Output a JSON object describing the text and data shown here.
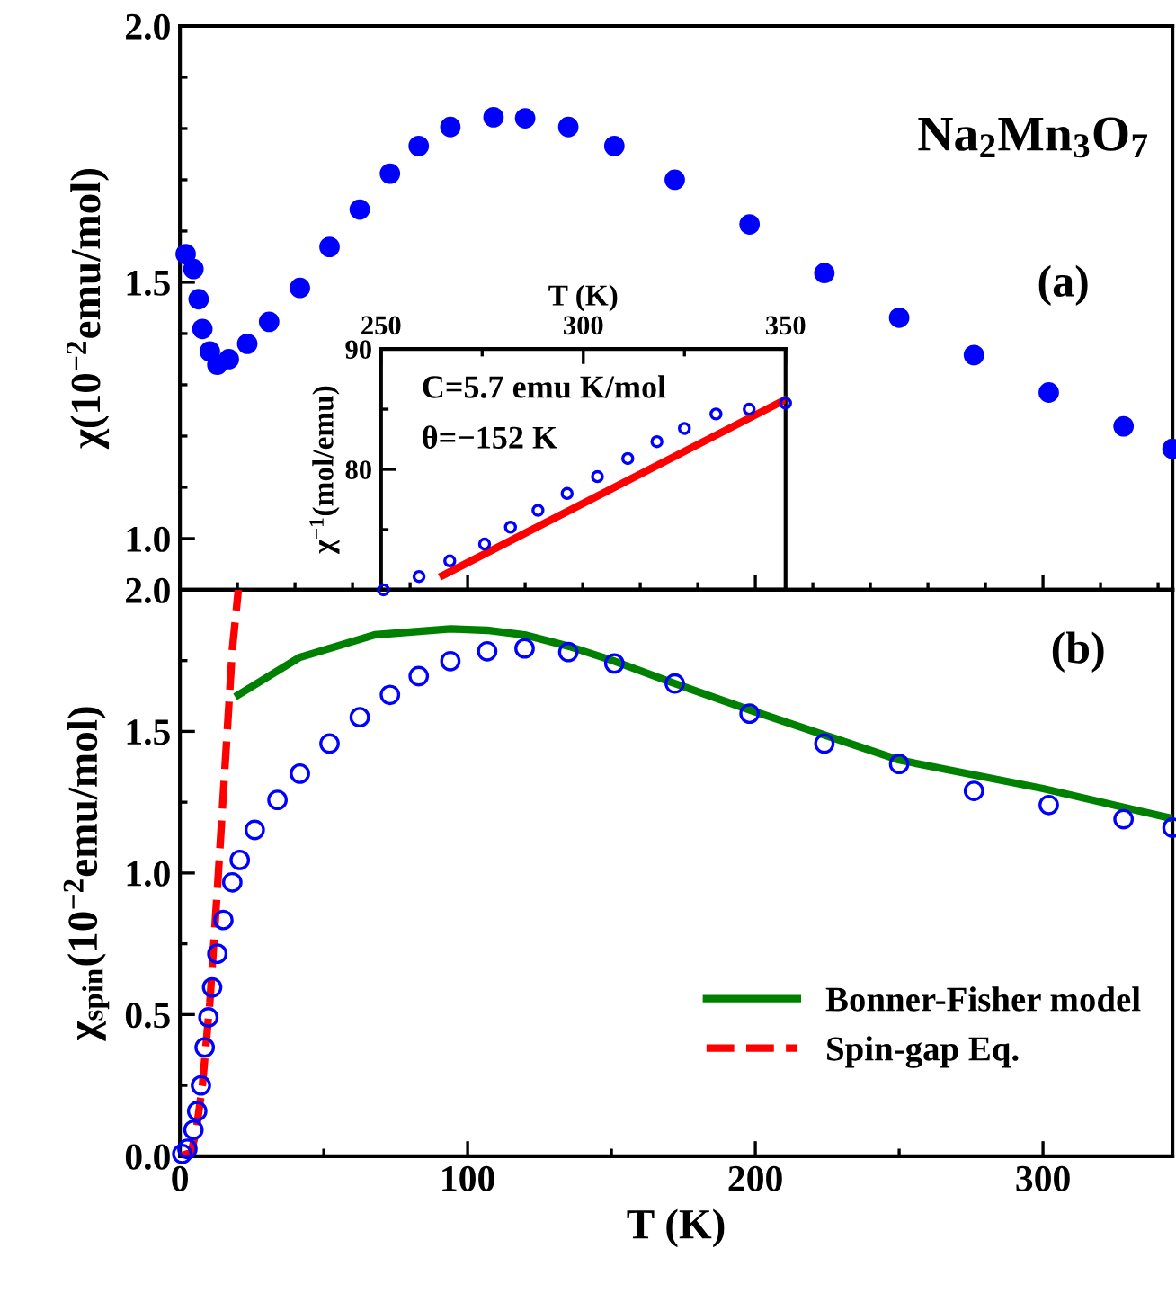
{
  "chart_data": [
    {
      "type": "scatter",
      "ylabel": "χ(10$^{−2}$emu/mol)",
      "xlim": [
        0,
        345
      ],
      "ylim": [
        0.9,
        2.0
      ],
      "xticks": [
        {
          "value": 0,
          "label": null
        },
        {
          "value": 100,
          "label": null
        },
        {
          "value": 200,
          "label": null
        },
        {
          "value": 300,
          "label": null
        }
      ],
      "yticks": [
        {
          "value": 1.0,
          "label": "1.0"
        },
        1.5,
        {
          "value": 2.0,
          "label": "2.0"
        }
      ],
      "tick_labels": "y",
      "marker": "circle",
      "annotations": [
        "Na$_{2}$Mn$_{3}$O$_{7}$",
        "(a)"
      ],
      "series": [
        {
          "color": "#0000ff",
          "x": [
            2,
            4.7,
            6.5,
            7.8,
            10.4,
            13,
            17,
            23.4,
            31,
            41.7,
            52,
            62.5,
            73,
            83,
            94,
            109,
            120,
            135,
            151,
            172,
            198,
            224,
            250,
            276,
            302,
            328,
            345
          ],
          "values": [
            1.555,
            1.526,
            1.467,
            1.409,
            1.365,
            1.339,
            1.35,
            1.38,
            1.423,
            1.489,
            1.569,
            1.642,
            1.712,
            1.766,
            1.803,
            1.822,
            1.82,
            1.803,
            1.766,
            1.7,
            1.613,
            1.518,
            1.431,
            1.358,
            1.285,
            1.219,
            1.175
          ]
        }
      ]
    },
    {
      "type": "scatter",
      "xlabel": "T (K)",
      "ylabel": "χ$^{−1}$(mol/emu)",
      "xlim": [
        250,
        350
      ],
      "ylim": [
        70,
        90
      ],
      "xticks": [
        250,
        300,
        350
      ],
      "yticks": [
        80,
        90
      ],
      "annotations": [
        "C=5.7 emu K/mol",
        "θ=−152 K"
      ],
      "series": [
        {
          "marker": "circle",
          "color": "#0000ff",
          "x": [
            250.6,
            259.4,
            267,
            275.6,
            282,
            288.8,
            296,
            303.5,
            311,
            318.2,
            325,
            332.8,
            341,
            350
          ],
          "values": [
            70,
            71.1,
            72.4,
            73.8,
            75.2,
            76.6,
            78,
            79.4,
            80.9,
            82.3,
            83.4,
            84.6,
            85,
            85.5
          ]
        },
        {
          "type": "line",
          "color": "#ff0000",
          "x": [
            265.3,
            350
          ],
          "values": [
            71.2,
            85.8
          ]
        }
      ]
    },
    {
      "type": "scatter",
      "xlabel": "T (K)",
      "ylabel": "χ$_{spin}$(10$^{−2}$emu/mol)",
      "xlim": [
        0,
        345
      ],
      "ylim": [
        0,
        2.0
      ],
      "xticks": [
        0,
        100,
        200,
        300
      ],
      "yticks": [
        {
          "value": 0,
          "label": "0.0"
        },
        0.5,
        {
          "value": 1,
          "label": "1.0"
        },
        1.5,
        {
          "value": 2,
          "label": "2.0"
        }
      ],
      "legend": "bottom right",
      "annotations": [
        "(b)"
      ],
      "series": [
        {
          "marker": "circle",
          "color": "#0000ff",
          "x": [
            0.8,
            2.6,
            4.7,
            6,
            7.3,
            8.6,
            9.9,
            11.2,
            13,
            15.1,
            18.2,
            20.8,
            26,
            33.9,
            41.7,
            52,
            62.5,
            73,
            83,
            94,
            106.8,
            119.8,
            135,
            151,
            172,
            198,
            224,
            250,
            276,
            302,
            328,
            345
          ],
          "values": [
            0.008,
            0.026,
            0.093,
            0.159,
            0.25,
            0.384,
            0.49,
            0.596,
            0.715,
            0.834,
            0.967,
            1.046,
            1.152,
            1.258,
            1.351,
            1.457,
            1.55,
            1.629,
            1.695,
            1.748,
            1.783,
            1.793,
            1.78,
            1.74,
            1.669,
            1.563,
            1.457,
            1.385,
            1.29,
            1.24,
            1.19,
            1.16
          ]
        },
        {
          "type": "line",
          "name": "Bonner-Fisher model",
          "color": "#008000",
          "x": [
            20.3,
            41.7,
            67.7,
            94,
            106.8,
            119.8,
            135,
            151,
            172,
            198,
            250,
            300,
            345
          ],
          "values": [
            1.629,
            1.762,
            1.841,
            1.862,
            1.857,
            1.841,
            1.801,
            1.748,
            1.669,
            1.576,
            1.399,
            1.298,
            1.192
          ]
        },
        {
          "type": "line",
          "name": "Spin-gap Eq.",
          "color": "#ff0000",
          "line_style": "dashed",
          "x": [
            0,
            3.9,
            5.7,
            7.8,
            10.4,
            13,
            15.6,
            18.2,
            20.3
          ],
          "values": [
            0,
            0.013,
            0.093,
            0.25,
            0.543,
            0.94,
            1.364,
            1.788,
            2.0
          ]
        }
      ]
    }
  ]
}
